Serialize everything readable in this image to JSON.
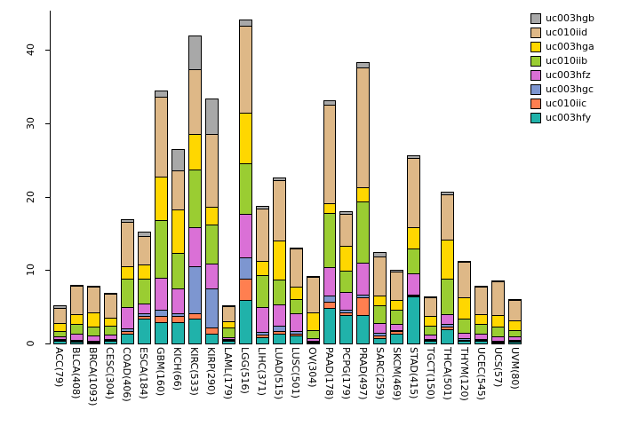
{
  "chart_data": {
    "type": "bar",
    "stacked": true,
    "title": "",
    "xlabel": "",
    "ylabel": "",
    "ylim": [
      0,
      45.5
    ],
    "yticks": [
      0,
      10,
      20,
      30,
      40
    ],
    "grid": false,
    "legend_position": "top-right",
    "categories": [
      "ACC(79)",
      "BLCA(408)",
      "BRCA(1093)",
      "CESC(304)",
      "COAD(406)",
      "ESCA(184)",
      "GBM(160)",
      "KICH(66)",
      "KIRC(533)",
      "KIRP(290)",
      "LAML(179)",
      "LGG(516)",
      "LIHC(371)",
      "LUAD(515)",
      "LUSC(501)",
      "OV(304)",
      "PAAD(178)",
      "PCPG(179)",
      "PRAD(497)",
      "SARC(259)",
      "SKCM(469)",
      "STAD(415)",
      "TGCT(150)",
      "THCA(501)",
      "THYM(120)",
      "UCEC(545)",
      "UCS(57)",
      "UVM(80)"
    ],
    "series": [
      {
        "name": "uc003hfy",
        "color": "#20B2AA",
        "values": [
          0.5,
          0.4,
          0.3,
          0.5,
          1.5,
          3.5,
          3.0,
          3.0,
          3.5,
          1.5,
          0.5,
          6.0,
          1.0,
          1.5,
          1.2,
          0.3,
          5.0,
          4.0,
          4.0,
          0.8,
          1.5,
          6.5,
          0.5,
          2.0,
          0.5,
          0.5,
          0.3,
          0.4
        ]
      },
      {
        "name": "uc010iic",
        "color": "#FF7F50",
        "values": [
          0.3,
          0.3,
          0.3,
          0.3,
          0.5,
          0.5,
          1.0,
          1.0,
          0.8,
          1.0,
          0.3,
          3.0,
          0.5,
          0.5,
          0.4,
          0.2,
          1.0,
          0.5,
          2.5,
          0.5,
          0.5,
          0.3,
          0.3,
          0.5,
          0.3,
          0.3,
          0.3,
          0.3
        ]
      },
      {
        "name": "uc003hgc",
        "color": "#7D96D0",
        "values": [
          0.2,
          0.3,
          0.3,
          0.2,
          0.5,
          0.5,
          1.0,
          0.5,
          6.5,
          5.5,
          0.3,
          3.0,
          0.5,
          0.8,
          0.5,
          0.3,
          1.0,
          0.5,
          0.5,
          0.5,
          0.3,
          0.3,
          0.3,
          0.5,
          0.4,
          0.3,
          0.3,
          0.3
        ]
      },
      {
        "name": "uc003hfz",
        "color": "#DA70D6",
        "values": [
          0.5,
          1.0,
          0.8,
          0.7,
          3.0,
          1.5,
          4.5,
          3.5,
          5.5,
          3.5,
          0.4,
          6.0,
          3.5,
          3.0,
          2.5,
          0.5,
          4.0,
          2.5,
          4.5,
          1.5,
          1.0,
          3.0,
          0.7,
          1.5,
          0.8,
          0.8,
          0.7,
          0.6
        ]
      },
      {
        "name": "uc010iib",
        "color": "#9ACD32",
        "values": [
          0.8,
          1.5,
          1.3,
          1.3,
          4.0,
          3.5,
          8.0,
          5.0,
          8.0,
          5.5,
          1.5,
          7.0,
          4.5,
          3.5,
          2.0,
          1.2,
          7.5,
          3.0,
          8.5,
          2.5,
          2.0,
          3.5,
          1.3,
          5.0,
          2.0,
          1.5,
          1.5,
          1.0
        ]
      },
      {
        "name": "uc003hga",
        "color": "#FFD700",
        "values": [
          1.2,
          1.5,
          2.0,
          1.2,
          1.8,
          2.0,
          6.0,
          6.0,
          5.0,
          2.5,
          1.0,
          7.0,
          2.0,
          5.5,
          1.8,
          2.5,
          1.5,
          3.5,
          2.0,
          1.5,
          1.5,
          3.0,
          1.5,
          5.5,
          3.0,
          1.5,
          1.7,
          1.4
        ]
      },
      {
        "name": "uc010iid",
        "color": "#DEB887",
        "values": [
          2.2,
          4.0,
          3.6,
          3.4,
          6.2,
          4.0,
          11.0,
          5.5,
          9.0,
          10.0,
          2.2,
          12.0,
          7.3,
          8.3,
          5.3,
          5.0,
          13.5,
          4.5,
          16.5,
          5.5,
          4.0,
          9.5,
          2.7,
          6.3,
          5.0,
          3.9,
          4.7,
          2.9
        ]
      },
      {
        "name": "uc003hgb",
        "color": "#A8A8A8",
        "values": [
          0.5,
          0.3,
          0.3,
          0.3,
          0.5,
          0.7,
          1.0,
          3.0,
          4.7,
          5.0,
          0.3,
          1.0,
          0.5,
          0.5,
          0.3,
          0.2,
          0.7,
          0.5,
          0.9,
          0.7,
          0.4,
          0.5,
          0.3,
          0.5,
          0.3,
          0.3,
          0.3,
          0.3
        ]
      }
    ],
    "legend_order_top_to_bottom": [
      "uc003hgb",
      "uc010iid",
      "uc003hga",
      "uc010iib",
      "uc003hfz",
      "uc003hgc",
      "uc010iic",
      "uc003hfy"
    ]
  }
}
